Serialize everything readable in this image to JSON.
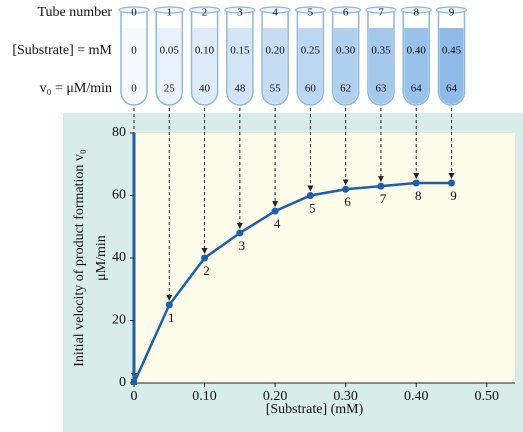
{
  "chart_data": {
    "type": "line",
    "row_labels": [
      "Tube number",
      "[Substrate] = mM",
      "v₀ = μM/min"
    ],
    "tube_numbers": [
      0,
      1,
      2,
      3,
      4,
      5,
      6,
      7,
      8,
      9
    ],
    "x": [
      0,
      0.05,
      0.1,
      0.15,
      0.2,
      0.25,
      0.3,
      0.35,
      0.4,
      0.45
    ],
    "x_labels": [
      "0",
      "0.05",
      "0.10",
      "0.15",
      "0.20",
      "0.25",
      "0.30",
      "0.35",
      "0.40",
      "0.45"
    ],
    "values": [
      0,
      25,
      40,
      48,
      55,
      60,
      62,
      63,
      64,
      64
    ],
    "color": "#1f5ea8",
    "x_label": "[Substrate] (mM)",
    "y_label": [
      "Initial velocity of product formation v₀",
      "μM/min"
    ],
    "xlim": [
      0,
      0.54
    ],
    "xticks": [
      0,
      {
        "value": 0.1,
        "label": "0.10"
      },
      {
        "value": 0.2,
        "label": "0.20"
      },
      {
        "value": 0.3,
        "label": "0.30"
      },
      {
        "value": 0.4,
        "label": "0.40"
      },
      {
        "value": 0.5,
        "label": "0.50"
      }
    ],
    "ylim": [
      0,
      80
    ],
    "yticks": [
      0,
      20,
      40,
      60,
      80
    ],
    "grid": false
  }
}
